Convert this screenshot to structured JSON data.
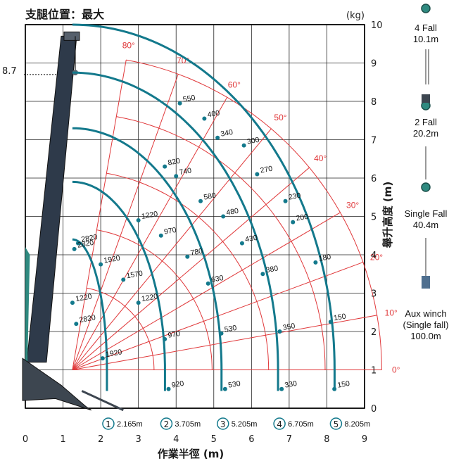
{
  "chart_data": {
    "type": "line",
    "title": "支腿位置：最大",
    "unit_label": "(kg)",
    "xlabel": "作業半徑 (m)",
    "ylabel": "舉升高度 (m)",
    "xlim": [
      0,
      9
    ],
    "ylim": [
      0,
      10
    ],
    "x_ticks": [
      "0",
      "1",
      "2",
      "3",
      "4",
      "5",
      "6",
      "7",
      "8",
      "9"
    ],
    "y_ticks": [
      "0",
      "1",
      "2",
      "3",
      "4",
      "5",
      "6",
      "7",
      "8",
      "9",
      "10"
    ],
    "height_marker": {
      "label": "8.7",
      "value": 8.7
    },
    "pivot": {
      "x": 1.25,
      "y": 1.0
    },
    "boom_angles": [
      {
        "label": "0°",
        "deg": 0
      },
      {
        "label": "10°",
        "deg": 10
      },
      {
        "label": "20°",
        "deg": 20
      },
      {
        "label": "30°",
        "deg": 30
      },
      {
        "label": "40°",
        "deg": 40
      },
      {
        "label": "50°",
        "deg": 50
      },
      {
        "label": "60°",
        "deg": 60
      },
      {
        "label": "70°",
        "deg": 70
      },
      {
        "label": "80°",
        "deg": 80
      }
    ],
    "angle_arc_radii": [
      2.165,
      3.705,
      5.205,
      6.705,
      8.205
    ],
    "series": [
      {
        "name": "①",
        "length_label": "2.165m",
        "max_height": 4.4,
        "loads": [
          {
            "label": "2820",
            "x": 1.4,
            "y": 4.3
          },
          {
            "label": "2820",
            "x": 1.35,
            "y": 2.2
          },
          {
            "label": "1920",
            "x": 2.05,
            "y": 1.3
          }
        ]
      },
      {
        "name": "②",
        "length_label": "3.705m",
        "max_height": 5.9,
        "loads": [
          {
            "label": "1220",
            "x": 1.25,
            "y": 2.75
          },
          {
            "label": "1920",
            "x": 2.0,
            "y": 3.75
          },
          {
            "label": "1570",
            "x": 2.6,
            "y": 3.35
          },
          {
            "label": "1220",
            "x": 3.0,
            "y": 2.75
          },
          {
            "label": "970",
            "x": 3.7,
            "y": 1.8
          },
          {
            "label": "920",
            "x": 3.8,
            "y": 0.5
          }
        ]
      },
      {
        "name": "③",
        "length_label": "5.205m",
        "max_height": 7.3,
        "loads": [
          {
            "label": "2820",
            "x": 1.3,
            "y": 4.15
          },
          {
            "label": "1220",
            "x": 3.0,
            "y": 4.9
          },
          {
            "label": "970",
            "x": 3.6,
            "y": 4.5
          },
          {
            "label": "780",
            "x": 4.3,
            "y": 3.95
          },
          {
            "label": "630",
            "x": 4.85,
            "y": 3.25
          },
          {
            "label": "530",
            "x": 5.2,
            "y": 1.95
          },
          {
            "label": "530",
            "x": 5.3,
            "y": 0.5
          }
        ]
      },
      {
        "name": "④",
        "length_label": "6.705m",
        "max_height": 8.75,
        "loads": [
          {
            "label": "820",
            "x": 3.7,
            "y": 6.3
          },
          {
            "label": "740",
            "x": 4.0,
            "y": 6.05
          },
          {
            "label": "580",
            "x": 4.65,
            "y": 5.4
          },
          {
            "label": "480",
            "x": 5.25,
            "y": 5.0
          },
          {
            "label": "430",
            "x": 5.75,
            "y": 4.3
          },
          {
            "label": "380",
            "x": 6.3,
            "y": 3.5
          },
          {
            "label": "350",
            "x": 6.75,
            "y": 2.0
          },
          {
            "label": "330",
            "x": 6.8,
            "y": 0.5
          }
        ]
      },
      {
        "name": "⑤",
        "length_label": "8.205m",
        "max_height": 10.0,
        "loads": [
          {
            "label": "550",
            "x": 4.1,
            "y": 7.95
          },
          {
            "label": "400",
            "x": 4.75,
            "y": 7.55
          },
          {
            "label": "340",
            "x": 5.1,
            "y": 7.05
          },
          {
            "label": "300",
            "x": 5.8,
            "y": 6.85
          },
          {
            "label": "270",
            "x": 6.15,
            "y": 6.1
          },
          {
            "label": "230",
            "x": 6.9,
            "y": 5.4
          },
          {
            "label": "200",
            "x": 7.1,
            "y": 4.85
          },
          {
            "label": "180",
            "x": 7.7,
            "y": 3.8
          },
          {
            "label": "150",
            "x": 8.1,
            "y": 2.25
          },
          {
            "label": "150",
            "x": 8.2,
            "y": 0.5
          }
        ]
      }
    ],
    "colors": {
      "grid": "#222222",
      "angle": "#e0383a",
      "curve": "#13798c",
      "boom": "#2e3a4a",
      "crane": "#2f8a80"
    }
  },
  "hooks": [
    {
      "fall": "4 Fall",
      "length": "10.1m"
    },
    {
      "fall": "2 Fall",
      "length": "20.2m"
    },
    {
      "fall": "Single Fall",
      "length": "40.4m"
    },
    {
      "fall": "Aux winch",
      "sub": "(Single fall)",
      "length": "100.0m"
    }
  ]
}
